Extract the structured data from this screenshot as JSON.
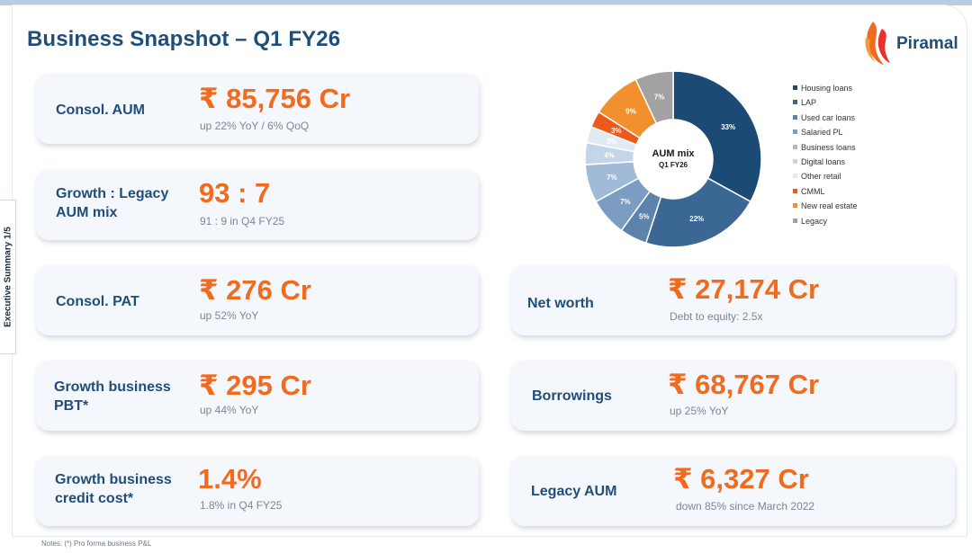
{
  "title": "Business Snapshot – Q1 FY26",
  "side_tab": "Executive Summary 1/5",
  "logo": {
    "text": "Piramal",
    "icon": "piramal-flame-icon",
    "colors": [
      "#f16b1f",
      "#e8302e"
    ]
  },
  "colors": {
    "navy": "#1f4e79",
    "orange": "#f16b1f",
    "card_bg": "#f4f7fb",
    "muted": "#7d8793"
  },
  "cards": [
    {
      "label": "Consol. AUM",
      "value": "₹ 85,756 Cr",
      "sub": "up 22% YoY / 6% QoQ"
    },
    {
      "label": "Growth : Legacy\nAUM mix",
      "value": "93 : 7",
      "sub": "91 : 9 in Q4 FY25"
    },
    {
      "label": "Consol. PAT",
      "value": "₹ 276 Cr",
      "sub": "up 52% YoY"
    },
    {
      "label": "Growth business\nPBT*",
      "value": "₹ 295 Cr",
      "sub": "up 44% YoY"
    },
    {
      "label": "Growth business\ncredit cost*",
      "value": "1.4%",
      "sub": "1.8% in Q4 FY25"
    },
    {
      "label": "Net worth",
      "value": "₹ 27,174 Cr",
      "sub": "Debt to equity: 2.5x"
    },
    {
      "label": "Borrowings",
      "value": "₹ 68,767 Cr",
      "sub": "up 25% YoY"
    },
    {
      "label": "Legacy AUM",
      "value": "₹ 6,327 Cr",
      "sub": "down 85% since March 2022"
    }
  ],
  "aum_chart": {
    "center_title": "AUM mix",
    "center_subtitle": "Q1 FY26",
    "segments": [
      {
        "name": "Housing loans",
        "value": 33,
        "label": "33%",
        "color": "#1b4a75"
      },
      {
        "name": "LAP",
        "value": 22,
        "label": "22%",
        "color": "#3b6793"
      },
      {
        "name": "Used car loans",
        "value": 5,
        "label": "5%",
        "color": "#5b83ab"
      },
      {
        "name": "Salaried PL",
        "value": 7,
        "label": "7%",
        "color": "#7b9dc1"
      },
      {
        "name": "Business loans",
        "value": 7,
        "label": "7%",
        "color": "#9fbbd8"
      },
      {
        "name": "Digital loans",
        "value": 4,
        "label": "4%",
        "color": "#c3d5e8"
      },
      {
        "name": "Other retail",
        "value": 3,
        "label": "3%",
        "color": "#e1eaf3"
      },
      {
        "name": "CMML",
        "value": 3,
        "label": "3%",
        "color": "#ea5a1c"
      },
      {
        "name": "New real estate",
        "value": 9,
        "label": "9%",
        "color": "#f3902e"
      },
      {
        "name": "Legacy",
        "value": 7,
        "label": "7%",
        "color": "#a2a2a2"
      }
    ]
  },
  "notes": "Notes:    (*) Pro forma business P&L"
}
